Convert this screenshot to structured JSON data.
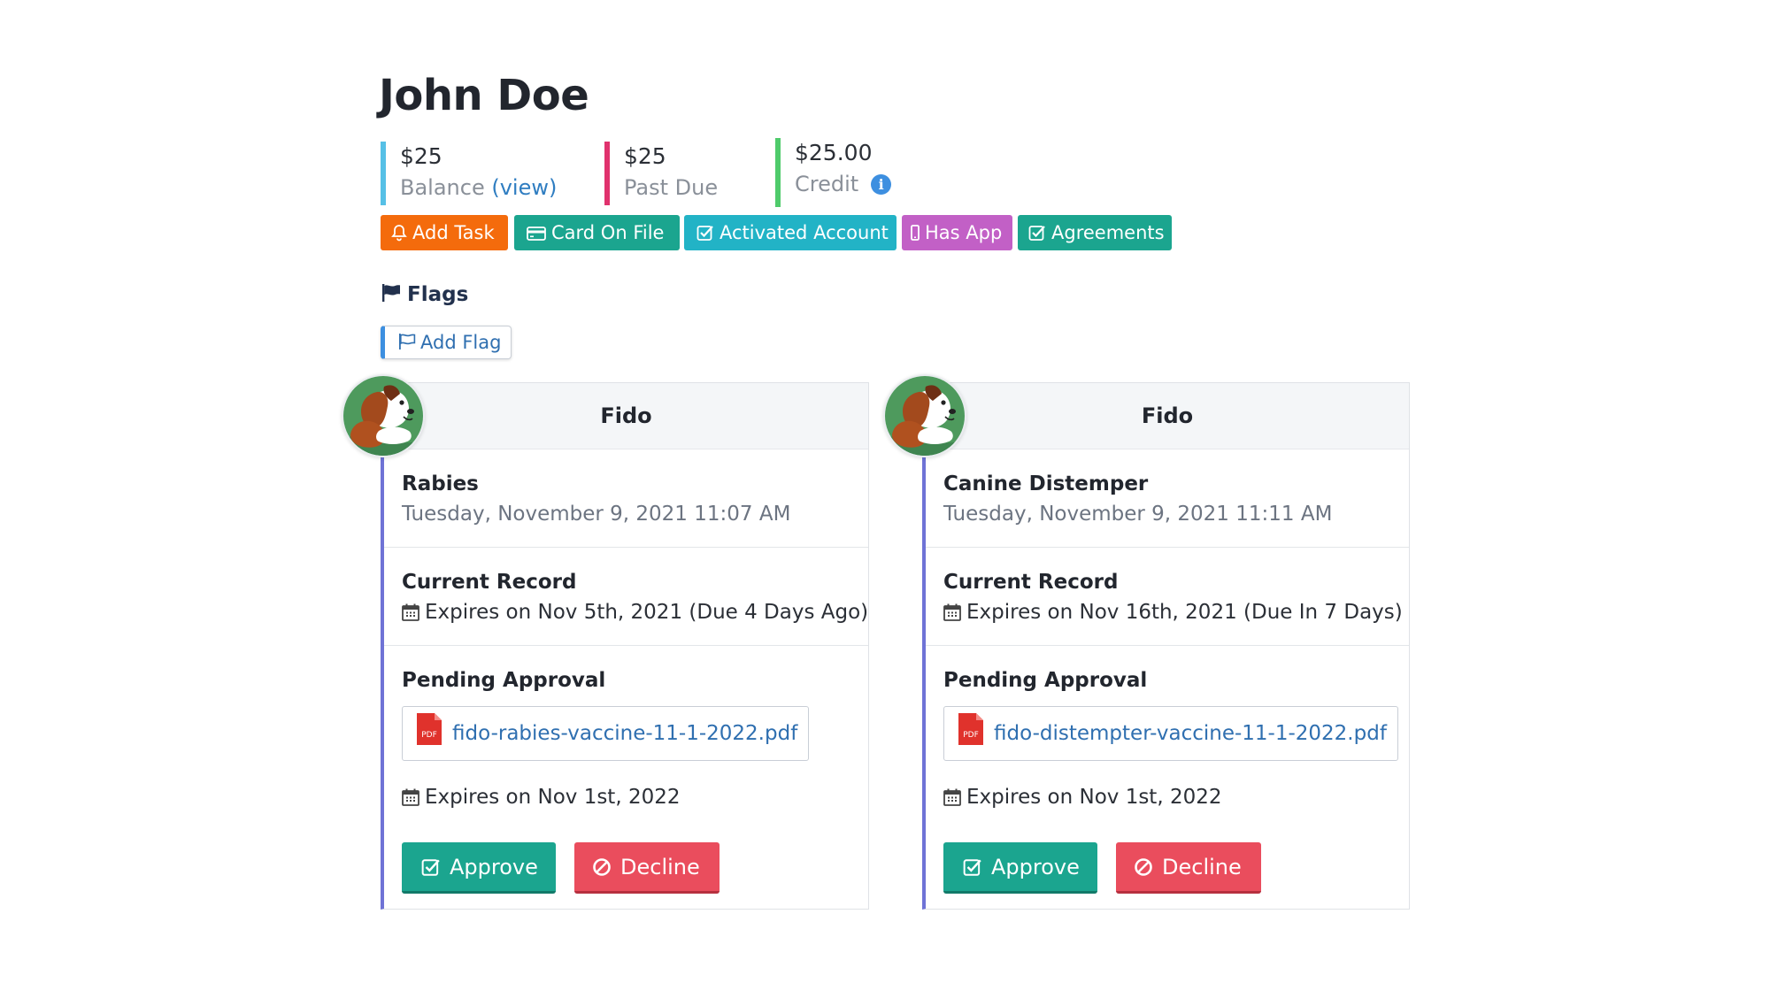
{
  "customer": {
    "name": "John Doe"
  },
  "stats": {
    "balance": {
      "amount": "$25",
      "label": "Balance",
      "link": "(view)"
    },
    "past_due": {
      "amount": "$25",
      "label": "Past Due"
    },
    "credit": {
      "amount": "$25.00",
      "label": "Credit",
      "info_icon": "i"
    }
  },
  "badges": {
    "add_task": "Add Task",
    "card_on_file": "Card On File",
    "activated_account": "Activated Account",
    "has_app": "Has App",
    "agreements": "Agreements"
  },
  "colors": {
    "add_task": "#f46b0c",
    "card_on_file": "#1ba58f",
    "activated_account": "#22b3c6",
    "has_app": "#c260c6",
    "agreements": "#1ba58f",
    "approve": "#1ba58f",
    "decline": "#ea4d5d",
    "card_accent": "#6f73d6"
  },
  "flags": {
    "heading": "Flags",
    "add_label": "Add Flag"
  },
  "pets": [
    {
      "name": "Fido",
      "vaccine": "Rabies",
      "submitted": "Tuesday, November 9, 2021 11:07 AM",
      "current_title": "Current Record",
      "current_expiry": "Expires on Nov 5th, 2021 (Due 4 Days Ago)",
      "pending_title": "Pending Approval",
      "file_name": "fido-rabies-vaccine-11-1-2022.pdf",
      "file_badge": "PDF",
      "pending_expiry": "Expires on Nov 1st, 2022",
      "approve_label": "Approve",
      "decline_label": "Decline"
    },
    {
      "name": "Fido",
      "vaccine": "Canine Distemper",
      "submitted": "Tuesday, November 9, 2021 11:11 AM",
      "current_title": "Current Record",
      "current_expiry": "Expires on Nov 16th, 2021 (Due In 7 Days)",
      "pending_title": "Pending Approval",
      "file_name": "fido-distempter-vaccine-11-1-2022.pdf",
      "file_badge": "PDF",
      "pending_expiry": "Expires on Nov 1st, 2022",
      "approve_label": "Approve",
      "decline_label": "Decline"
    }
  ]
}
